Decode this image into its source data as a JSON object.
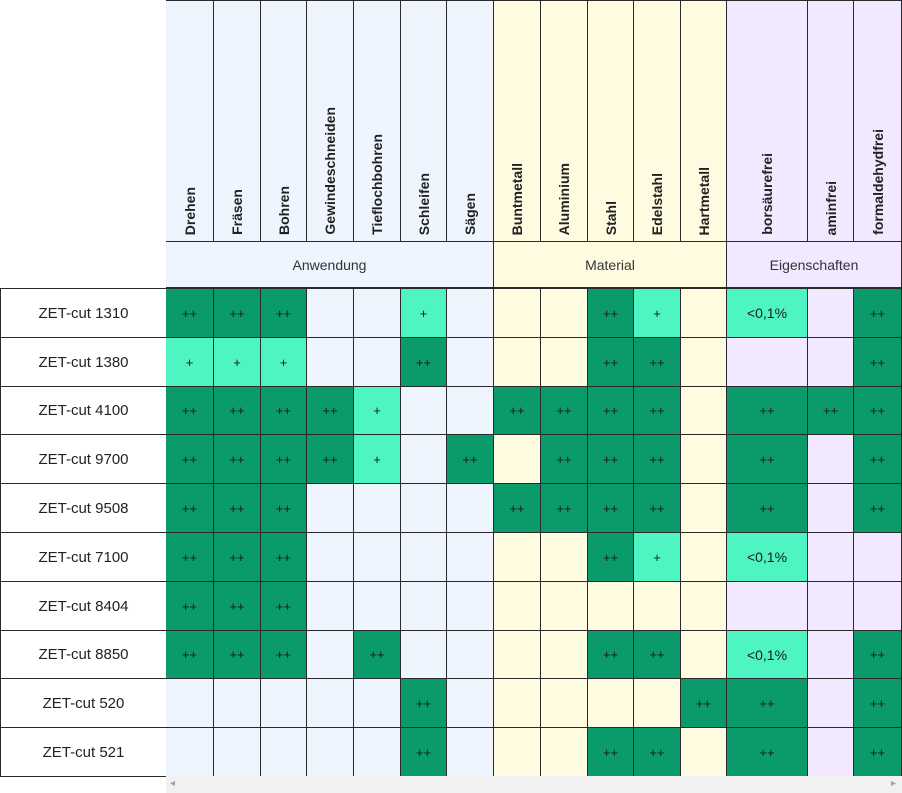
{
  "groups": [
    {
      "label": "Anwendung",
      "start": 0,
      "count": 7,
      "bg": "#eef5ff"
    },
    {
      "label": "Material",
      "start": 7,
      "count": 5,
      "bg": "#fffbe0"
    },
    {
      "label": "Eigenschaften",
      "start": 12,
      "count": 3,
      "bg": "#f2e8ff"
    }
  ],
  "columns": [
    "Drehen",
    "Fräsen",
    "Bohren",
    "Gewindeschneiden",
    "Tieflochbohren",
    "Schleifen",
    "Sägen",
    "Buntmetall",
    "Aluminium",
    "Stahl",
    "Edelstahl",
    "Hartmetall",
    "borsäurefrei",
    "aminfrei",
    "formaldehydfrei"
  ],
  "rows": [
    {
      "name": "ZET-cut 1310",
      "cells": [
        "++",
        "++",
        "++",
        "",
        "",
        "+",
        "",
        "",
        "",
        "++",
        "+",
        "",
        "<0,1%",
        "",
        "++"
      ]
    },
    {
      "name": "ZET-cut 1380",
      "cells": [
        "+",
        "+",
        "+",
        "",
        "",
        "++",
        "",
        "",
        "",
        "++",
        "++",
        "",
        "",
        "",
        "++"
      ]
    },
    {
      "name": "ZET-cut 4100",
      "cells": [
        "++",
        "++",
        "++",
        "++",
        "+",
        "",
        "",
        "++",
        "++",
        "++",
        "++",
        "",
        "++",
        "++",
        "++"
      ]
    },
    {
      "name": "ZET-cut 9700",
      "cells": [
        "++",
        "++",
        "++",
        "++",
        "+",
        "",
        "++",
        "",
        "++",
        "++",
        "++",
        "",
        "++",
        "",
        "++"
      ]
    },
    {
      "name": "ZET-cut 9508",
      "cells": [
        "++",
        "++",
        "++",
        "",
        "",
        "",
        "",
        "++",
        "++",
        "++",
        "++",
        "",
        "++",
        "",
        "++"
      ]
    },
    {
      "name": "ZET-cut 7100",
      "cells": [
        "++",
        "++",
        "++",
        "",
        "",
        "",
        "",
        "",
        "",
        "++",
        "+",
        "",
        "<0,1%",
        "",
        ""
      ]
    },
    {
      "name": "ZET-cut 8404",
      "cells": [
        "++",
        "++",
        "++",
        "",
        "",
        "",
        "",
        "",
        "",
        "",
        "",
        "",
        "",
        "",
        ""
      ]
    },
    {
      "name": "ZET-cut 8850",
      "cells": [
        "++",
        "++",
        "++",
        "",
        "++",
        "",
        "",
        "",
        "",
        "++",
        "++",
        "",
        "<0,1%",
        "",
        "++"
      ]
    },
    {
      "name": "ZET-cut 520",
      "cells": [
        "",
        "",
        "",
        "",
        "",
        "++",
        "",
        "",
        "",
        "",
        "",
        "++",
        "++",
        "",
        "++"
      ]
    },
    {
      "name": "ZET-cut 521",
      "cells": [
        "",
        "",
        "",
        "",
        "",
        "++",
        "",
        "",
        "",
        "++",
        "++",
        "",
        "++",
        "",
        "++"
      ]
    }
  ],
  "colors": {
    "strong": "#0b9a6a",
    "light": "#4ef5c3",
    "anwendung_bg": "#eef5ff",
    "material_bg": "#fffbe0",
    "eigenschaften_bg": "#f2e8ff"
  },
  "scrollbar": {
    "left_icon": "scroll-left-arrow-icon",
    "right_icon": "scroll-right-arrow-icon",
    "left_glyph": "◂",
    "right_glyph": "▸"
  }
}
